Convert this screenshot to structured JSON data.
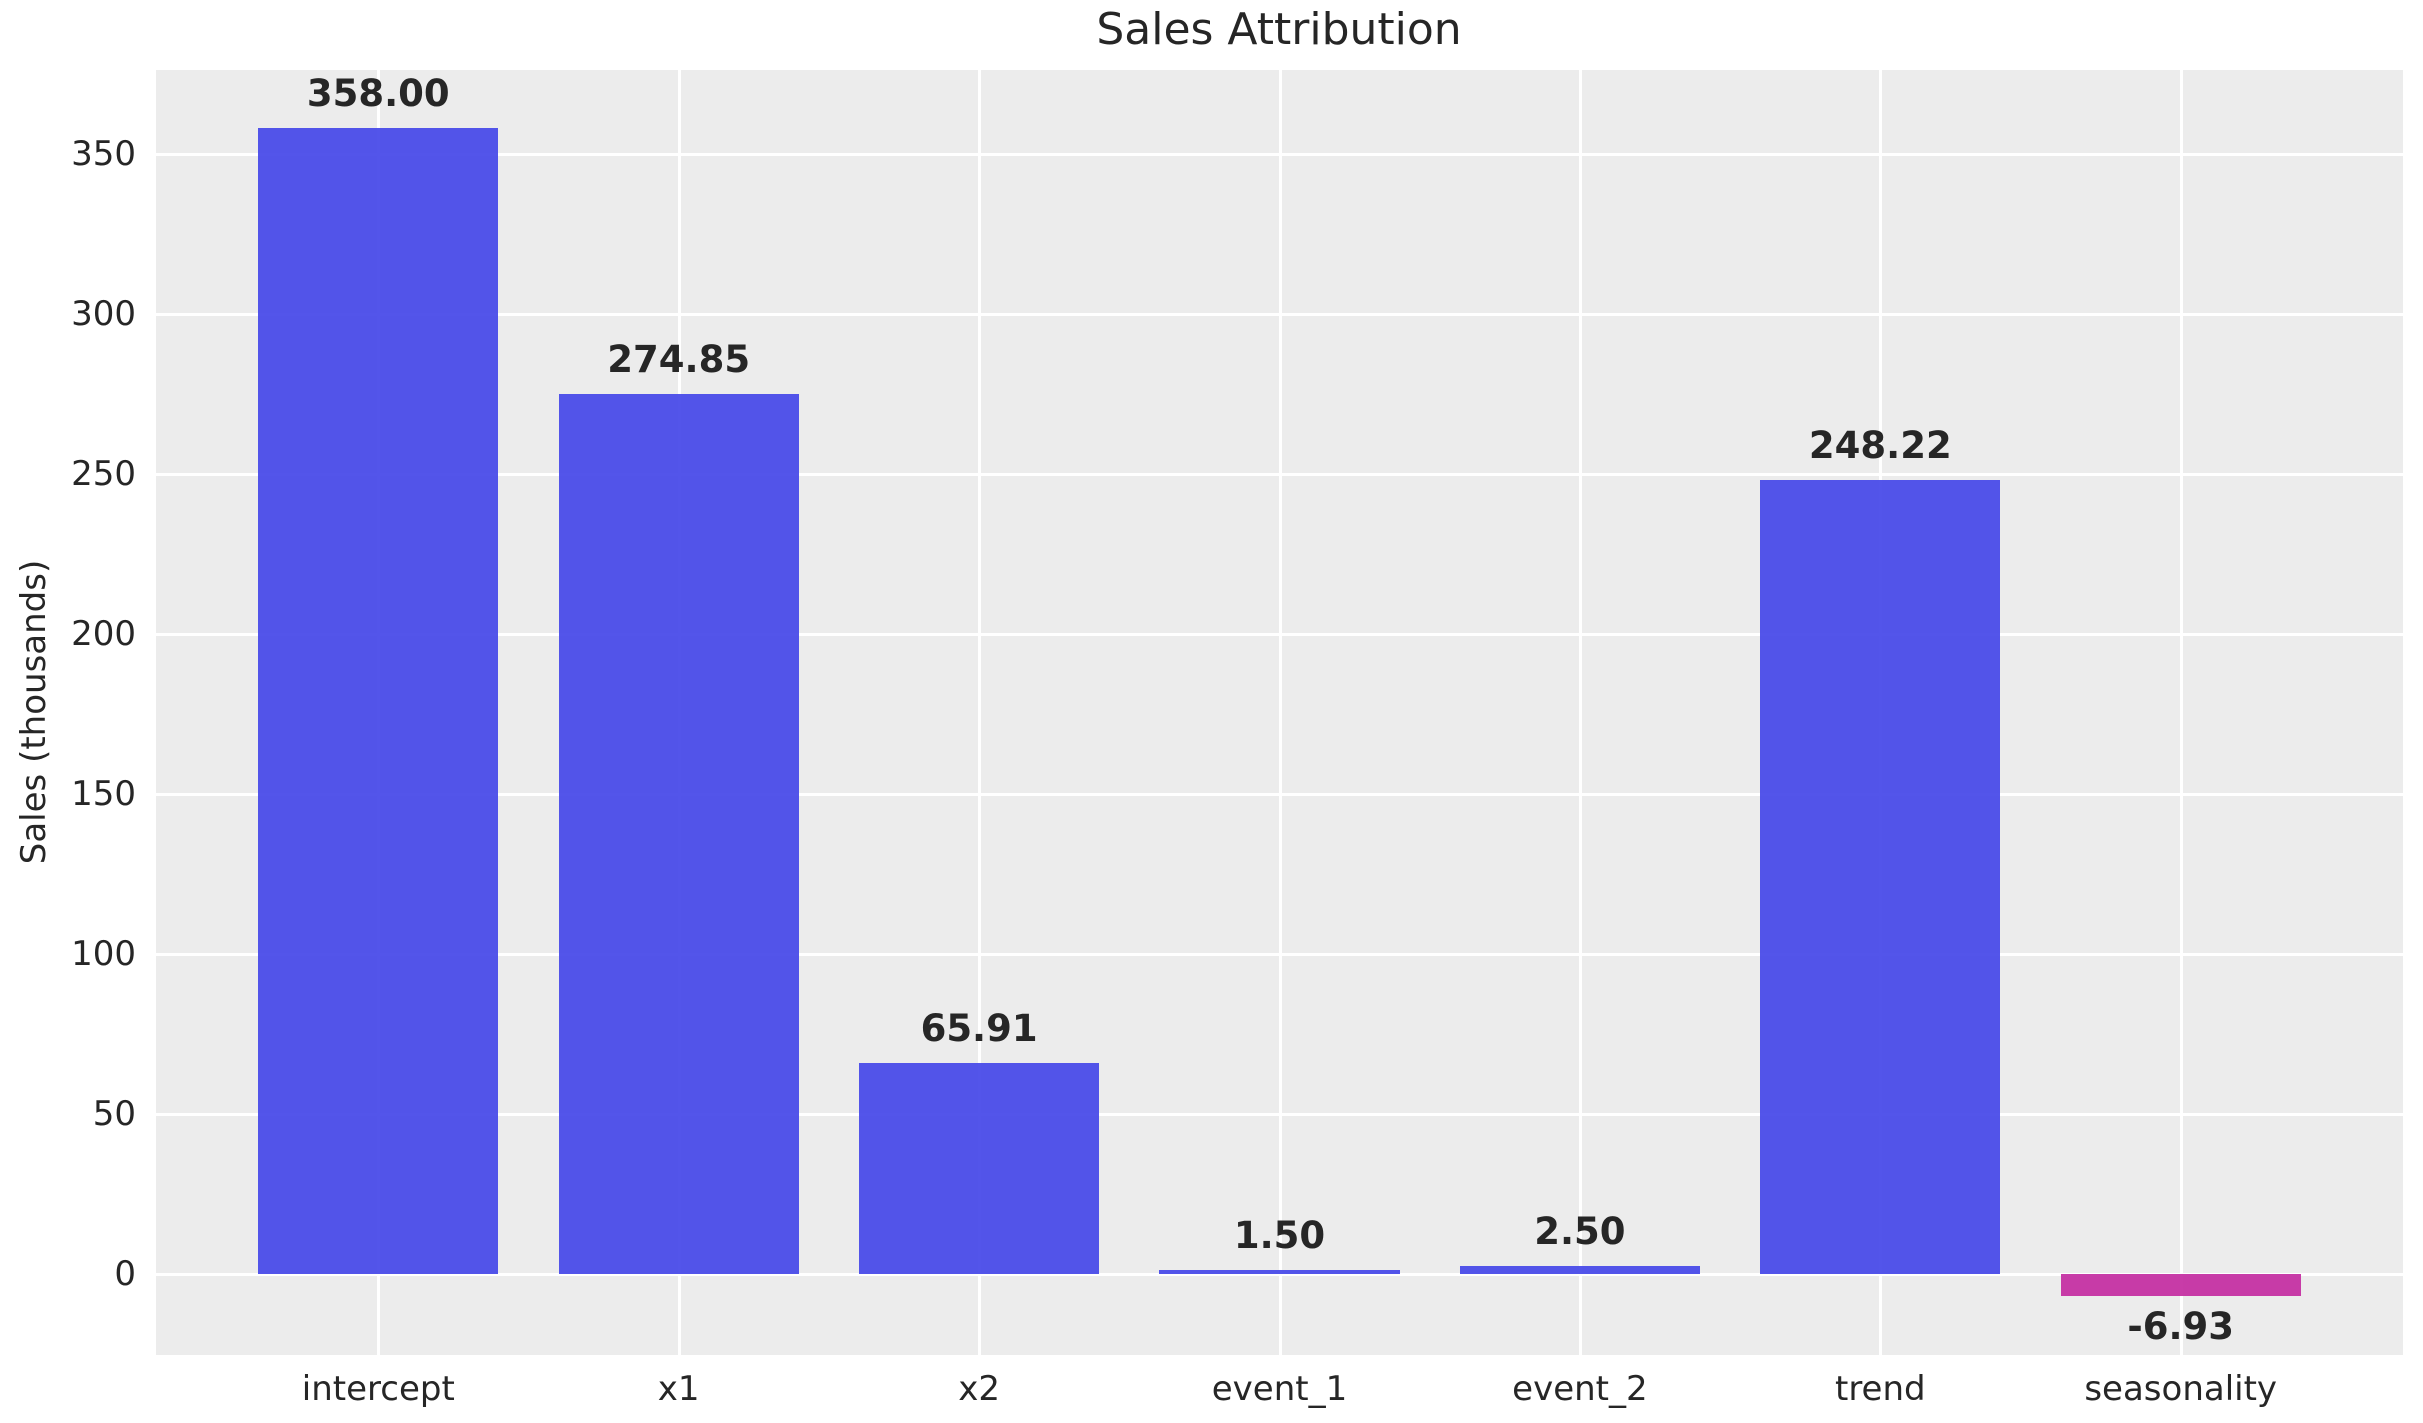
{
  "colors": {
    "positive_bar": "#4446E8",
    "negative_bar": "#C32BA1",
    "plot_background": "#ECECEC",
    "gridline": "#FFFFFF",
    "text": "#262626"
  },
  "chart_data": {
    "type": "bar",
    "title": "Sales Attribution",
    "categories": [
      "intercept",
      "x1",
      "x2",
      "event_1",
      "event_2",
      "trend",
      "seasonality"
    ],
    "values": [
      358.0,
      274.85,
      65.91,
      1.5,
      2.5,
      248.22,
      -6.93
    ],
    "bar_labels": [
      "358.00",
      "274.85",
      "65.91",
      "1.50",
      "2.50",
      "248.22",
      "-6.93"
    ],
    "xlabel": "",
    "ylabel": "Sales (thousands)",
    "ylim": [
      -25.2,
      376.2
    ],
    "xlim": [
      -0.74,
      6.74
    ],
    "yticks": [
      0,
      50,
      100,
      150,
      200,
      250,
      300,
      350
    ],
    "bar_width": 0.8,
    "grid": true,
    "legend": false
  }
}
